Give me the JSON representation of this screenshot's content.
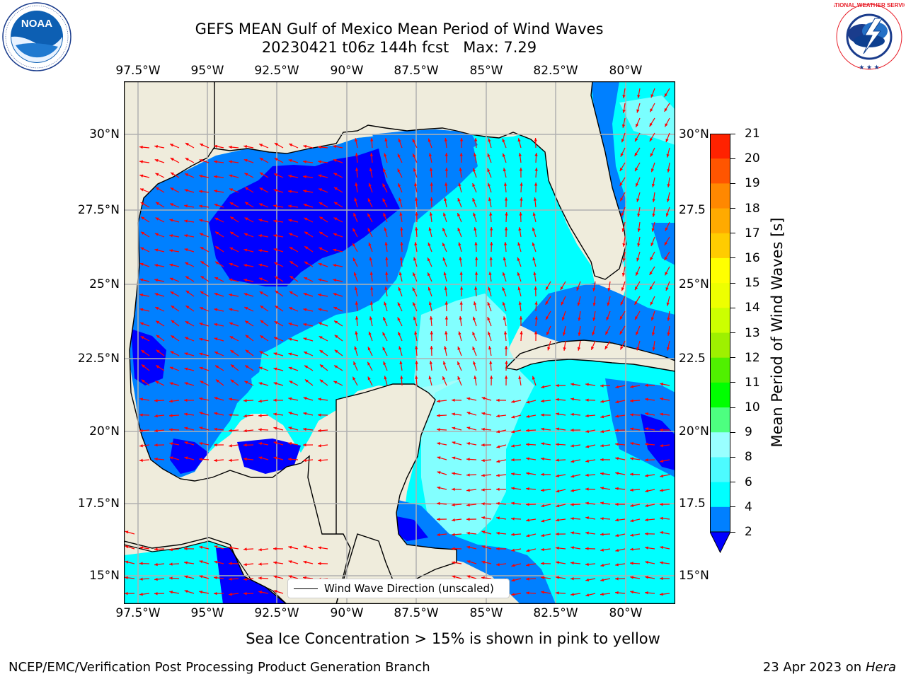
{
  "header": {
    "title_line1": "GEFS MEAN Gulf of Mexico Mean Period of Wind Waves",
    "title_line2": "20230421 t06z 144h fcst   Max: 7.29",
    "left_logo_name": "NOAA",
    "left_logo_ring_text": "NATIONAL OCEANIC AND ATMOSPHERIC ADMINISTRATION · U.S. DEPARTMENT OF COMMERCE",
    "right_logo_ring_text": "NATIONAL WEATHER SERVICE"
  },
  "map": {
    "lon_labels": [
      "97.5°W",
      "95°W",
      "92.5°W",
      "90°W",
      "87.5°W",
      "85°W",
      "82.5°W",
      "80°W"
    ],
    "lat_labels": [
      "30°N",
      "27.5°N",
      "25°N",
      "22.5°N",
      "20°N",
      "17.5°N",
      "15°N"
    ],
    "right_lat_labels": [
      "30°N",
      "27.5",
      "25°N",
      "22.5",
      "20°N",
      "17.5",
      "15°N"
    ],
    "legend_label": "Wind Wave Direction (unscaled)",
    "land_color": "#efecdc",
    "arrow_color": "#ff0000"
  },
  "colorbar": {
    "label": "Mean Period of Wind Waves [s]",
    "ticks": [
      "2",
      "4",
      "6",
      "8",
      "9",
      "10",
      "11",
      "12",
      "13",
      "14",
      "15",
      "16",
      "17",
      "18",
      "19",
      "20",
      "21"
    ],
    "colors": [
      "#0000ff",
      "#0080ff",
      "#00ffff",
      "#4dfbff",
      "#99ffff",
      "#4dff80",
      "#00ff00",
      "#50f000",
      "#9ef000",
      "#ccff00",
      "#eeff00",
      "#ffff00",
      "#ffcc00",
      "#ffaa00",
      "#ff8800",
      "#ff5500",
      "#ff2200",
      "#ff0000"
    ],
    "extend_color": "#0000ff"
  },
  "footer": {
    "note": "Sea Ice Concentration > 15% is shown in pink to yellow",
    "credit": "NCEP/EMC/Verification Post Processing Product Generation Branch",
    "date_prefix": "23 Apr 2023 on ",
    "date_host": "Hera"
  }
}
